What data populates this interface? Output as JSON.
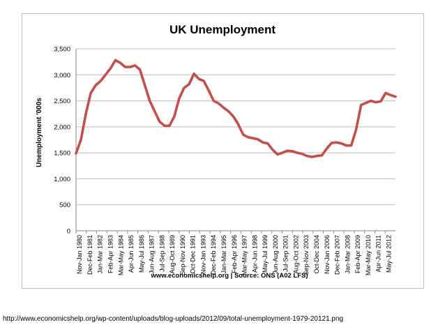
{
  "page_url": "http://www.economicshelp.org/wp-content/uploads/blog-uploads/2012/09/total-unemployment-1979-20121.png",
  "chart_data": {
    "type": "line",
    "title": "UK Unemployment",
    "ylabel": "Unemployment '000s",
    "xlabel": "",
    "source_note": "www.economicshelp.org | Source: ONS (A02 LFS)",
    "ylim": [
      0,
      3500
    ],
    "yticks": [
      0,
      500,
      1000,
      1500,
      2000,
      2500,
      3000,
      3500
    ],
    "ytick_labels": [
      "0",
      "500",
      "1,000",
      "1,500",
      "2,000",
      "2,500",
      "3,000",
      "3,500"
    ],
    "xtick_labels": [
      "Nov-Jan 1980",
      "Dec-Feb 1981",
      "Jan-Mar 1982",
      "Feb-Apr 1983",
      "Mar-May 1984",
      "Apr-Jun 1985",
      "May-Jul 1986",
      "Jun-Aug 1987",
      "Jul-Sep 1988",
      "Aug-Oct 1989",
      "Sep-Nov 1990",
      "Oct-Dec 1991",
      "Nov-Jan 1993",
      "Dec-Feb 1994",
      "Jan-Mar 1995",
      "Feb-Apr 1996",
      "Mar-May 1997",
      "Apr-Jun 1998",
      "May-Jul 1999",
      "Jun-Aug 2000",
      "Jul-Sep 2001",
      "Aug-Oct 2002",
      "Sep-Nov 2003",
      "Oct-Dec 2004",
      "Nov-Jan 2006",
      "Dec-Feb 2007",
      "Jan-Mar 2008",
      "Feb-Apr 2009",
      "Mar-May 2010",
      "Apr-Jun 2011",
      "May-Jul 2012"
    ],
    "x_start": 1980.0,
    "x_end": 2012.5,
    "grid": true,
    "legend": "none",
    "series": [
      {
        "color": "#c0504d",
        "x": [
          1980.0,
          1980.5,
          1981.0,
          1981.5,
          1982.0,
          1982.5,
          1983.0,
          1983.5,
          1984.0,
          1984.5,
          1985.0,
          1985.5,
          1986.0,
          1986.5,
          1987.0,
          1987.5,
          1988.0,
          1988.5,
          1989.0,
          1989.5,
          1990.0,
          1990.5,
          1991.0,
          1991.5,
          1992.0,
          1992.5,
          1993.0,
          1993.5,
          1994.0,
          1994.5,
          1995.0,
          1995.5,
          1996.0,
          1996.5,
          1997.0,
          1997.5,
          1998.0,
          1998.5,
          1999.0,
          1999.5,
          2000.0,
          2000.5,
          2001.0,
          2001.5,
          2002.0,
          2002.5,
          2003.0,
          2003.5,
          2004.0,
          2004.5,
          2005.0,
          2005.5,
          2006.0,
          2006.5,
          2007.0,
          2007.5,
          2008.0,
          2008.5,
          2009.0,
          2009.5,
          2010.0,
          2010.5,
          2011.0,
          2011.5,
          2012.0,
          2012.5
        ],
        "y": [
          1490,
          1750,
          2250,
          2650,
          2800,
          2880,
          3000,
          3120,
          3280,
          3230,
          3150,
          3150,
          3180,
          3100,
          2800,
          2500,
          2300,
          2100,
          2020,
          2020,
          2200,
          2550,
          2750,
          2820,
          3020,
          2920,
          2880,
          2700,
          2500,
          2450,
          2370,
          2300,
          2200,
          2050,
          1850,
          1800,
          1780,
          1760,
          1700,
          1680,
          1560,
          1470,
          1500,
          1540,
          1530,
          1500,
          1480,
          1440,
          1420,
          1440,
          1450,
          1580,
          1690,
          1700,
          1680,
          1640,
          1640,
          1950,
          2420,
          2460,
          2500,
          2470,
          2490,
          2650,
          2610,
          2580
        ]
      }
    ]
  }
}
